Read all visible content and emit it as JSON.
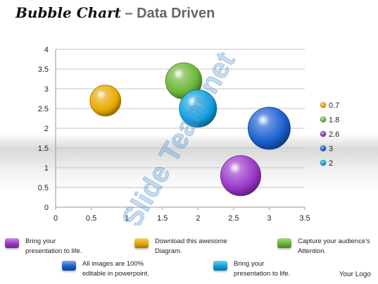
{
  "title": {
    "part1": "Bubble Chart",
    "separator": " – ",
    "part2": "Data Driven"
  },
  "watermark": "Slide Team.net",
  "chart_data": {
    "type": "scatter",
    "xlim": [
      0,
      3.5
    ],
    "ylim": [
      0,
      4
    ],
    "xticks": [
      "0",
      "0.5",
      "1",
      "1.5",
      "2",
      "2.5",
      "3",
      "3.5"
    ],
    "yticks": [
      "0",
      "0.5",
      "1",
      "1.5",
      "2",
      "2.5",
      "3",
      "3.5",
      "4"
    ],
    "grid": true,
    "legend_position": "right",
    "points": [
      {
        "x": 0.7,
        "y": 2.7,
        "size": 0.7,
        "label": "0.7",
        "color": "#e8a800"
      },
      {
        "x": 1.8,
        "y": 3.2,
        "size": 1.8,
        "label": "1.8",
        "color": "#6ab536"
      },
      {
        "x": 2.6,
        "y": 0.8,
        "size": 2.6,
        "label": "2.6",
        "color": "#9a36c8"
      },
      {
        "x": 3.0,
        "y": 2.0,
        "size": 3.0,
        "label": "3",
        "color": "#1a5fd0"
      },
      {
        "x": 2.0,
        "y": 2.5,
        "size": 2.0,
        "label": "2",
        "color": "#0ea0e0"
      }
    ]
  },
  "notes": [
    {
      "text": "Bring your\npresentation to life.",
      "color": "#9a36c8"
    },
    {
      "text": "Download this awesome\nDiagram.",
      "color": "#e8a800"
    },
    {
      "text": "Capture your audience’s\nAttention.",
      "color": "#6ab536"
    },
    {
      "text": "All images are 100%\neditable in powerpoint.",
      "color": "#1a5fd0"
    },
    {
      "text": "Bring your\npresentation to life.",
      "color": "#0ea0e0"
    }
  ],
  "logo": "Your Logo"
}
